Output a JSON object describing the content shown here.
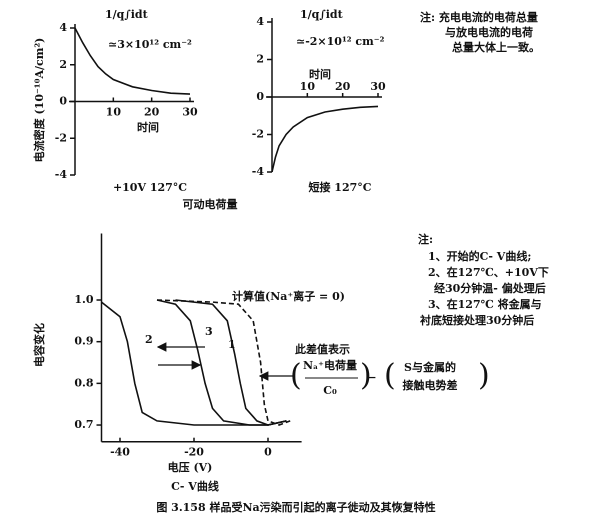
{
  "chart_data": [
    {
      "type": "line",
      "y_label": "电流密度 (10⁻¹⁰A/cm²)",
      "x_label": "时间",
      "annotations": [
        "1/q∫idt",
        "≃3×10¹² cm⁻²"
      ],
      "caption": "+10V 127°C",
      "xlim": [
        0,
        30
      ],
      "xticks": [
        10,
        20,
        30
      ],
      "ylim": [
        -4,
        4
      ],
      "yticks": [
        -4,
        -2,
        0,
        2,
        4
      ],
      "series": [
        {
          "color": "#111111",
          "x": [
            0,
            2,
            4,
            6,
            8,
            10,
            15,
            20,
            25,
            30
          ],
          "values": [
            4,
            3.2,
            2.5,
            1.9,
            1.5,
            1.2,
            0.8,
            0.6,
            0.45,
            0.4
          ]
        }
      ]
    },
    {
      "type": "line",
      "x_label": "时间",
      "annotations": [
        "1/q∫idt",
        "≃-2×10¹² cm⁻²"
      ],
      "caption": "短接 127°C",
      "xlim": [
        0,
        30
      ],
      "xticks": [
        10,
        20,
        30
      ],
      "ylim": [
        -4,
        4
      ],
      "yticks": [
        -4,
        -2,
        0,
        2,
        4
      ],
      "series": [
        {
          "color": "#111111",
          "x": [
            0,
            1,
            2,
            4,
            6,
            10,
            15,
            20,
            25,
            30
          ],
          "values": [
            -4,
            -3.2,
            -2.6,
            -2,
            -1.6,
            -1.1,
            -0.8,
            -0.65,
            -0.55,
            -0.5
          ]
        }
      ]
    },
    {
      "type": "line",
      "y_label": "电容变化",
      "x_label": "电压 (V)",
      "subtitle": "C- V曲线",
      "xlim": [
        -45,
        8
      ],
      "xticks": [
        -40,
        -20,
        0
      ],
      "ylim": [
        0.66,
        1.15
      ],
      "yticks": [
        0.7,
        0.8,
        0.9,
        {
          "value": 1,
          "label": "1.0"
        }
      ],
      "annotations": [
        "此差值表示",
        "Nₐ⁺电荷量",
        "C₀",
        "−",
        "S与金属的",
        "接触电势差"
      ],
      "series": [
        {
          "name": "1",
          "color": "#111111",
          "dashed": false,
          "x": [
            -25,
            -15,
            -11,
            -9,
            -7.5,
            -6,
            -3,
            0,
            5
          ],
          "values": [
            1.0,
            0.99,
            0.95,
            0.87,
            0.8,
            0.74,
            0.71,
            0.7,
            0.71
          ]
        },
        {
          "name": "2",
          "color": "#111111",
          "dashed": false,
          "x": [
            -45,
            -40,
            -38,
            -36,
            -34,
            -30,
            -20,
            -10,
            0,
            5
          ],
          "values": [
            0.995,
            0.96,
            0.9,
            0.8,
            0.73,
            0.71,
            0.7,
            0.7,
            0.7,
            0.71
          ]
        },
        {
          "name": "3",
          "color": "#111111",
          "dashed": false,
          "x": [
            -30,
            -25,
            -21,
            -19,
            -17,
            -15,
            -12,
            -5,
            0,
            5
          ],
          "values": [
            1.0,
            0.99,
            0.95,
            0.88,
            0.8,
            0.74,
            0.71,
            0.7,
            0.7,
            0.71
          ]
        },
        {
          "name": "计算值(Na⁺离子 = 0)",
          "color": "#111111",
          "dashed": true,
          "x": [
            -30,
            -15,
            -8,
            -4,
            -2,
            -1,
            0,
            3,
            6
          ],
          "values": [
            1.0,
            0.995,
            0.99,
            0.95,
            0.85,
            0.75,
            0.71,
            0.7,
            0.71
          ]
        }
      ]
    }
  ],
  "group_label": "可动电荷量",
  "top_note": [
    "注: 充电电流的电荷总量",
    "与放电电流的电荷",
    "总量大体上一致。"
  ],
  "notes": [
    "注:",
    "1、开始的C- V曲线;",
    "2、在127℃、+10V下",
    "经30分钟温- 偏处理后",
    "3、在127℃ 将金属与",
    "衬底短接处理30分钟后"
  ],
  "figure_caption": "图 3.158  样品受Na污染而引起的离子徙动及其恢复特性"
}
